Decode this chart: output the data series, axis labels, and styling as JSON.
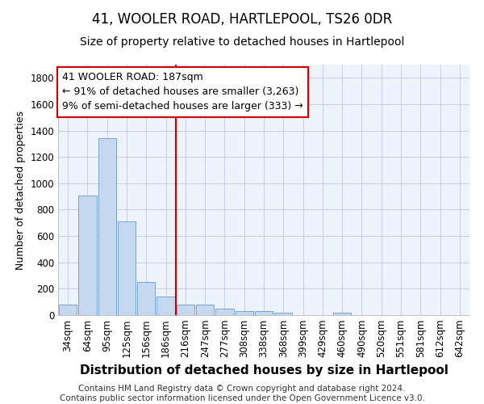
{
  "title": "41, WOOLER ROAD, HARTLEPOOL, TS26 0DR",
  "subtitle": "Size of property relative to detached houses in Hartlepool",
  "xlabel": "Distribution of detached houses by size in Hartlepool",
  "ylabel": "Number of detached properties",
  "categories": [
    "34sqm",
    "64sqm",
    "95sqm",
    "125sqm",
    "156sqm",
    "186sqm",
    "216sqm",
    "247sqm",
    "277sqm",
    "308sqm",
    "338sqm",
    "368sqm",
    "399sqm",
    "429sqm",
    "460sqm",
    "490sqm",
    "520sqm",
    "551sqm",
    "581sqm",
    "612sqm",
    "642sqm"
  ],
  "values": [
    82,
    905,
    1340,
    710,
    250,
    140,
    78,
    78,
    50,
    28,
    28,
    20,
    0,
    0,
    20,
    0,
    0,
    0,
    0,
    0,
    0
  ],
  "bar_color": "#c5d8f0",
  "bar_edge_color": "#6699cc",
  "vline_x_index": 5,
  "vline_color": "#cc0000",
  "annotation_line1": "41 WOOLER ROAD: 187sqm",
  "annotation_line2": "← 91% of detached houses are smaller (3,263)",
  "annotation_line3": "9% of semi-detached houses are larger (333) →",
  "annotation_box_color": "#cc0000",
  "ylim": [
    0,
    1900
  ],
  "yticks": [
    0,
    200,
    400,
    600,
    800,
    1000,
    1200,
    1400,
    1600,
    1800
  ],
  "footer_text": "Contains HM Land Registry data © Crown copyright and database right 2024.\nContains public sector information licensed under the Open Government Licence v3.0.",
  "bg_color": "#eef2fa",
  "grid_color": "#c0c8e0",
  "title_fontsize": 12,
  "subtitle_fontsize": 10,
  "ylabel_fontsize": 9,
  "xlabel_fontsize": 11,
  "tick_fontsize": 8.5,
  "annotation_fontsize": 9,
  "footer_fontsize": 7.5
}
